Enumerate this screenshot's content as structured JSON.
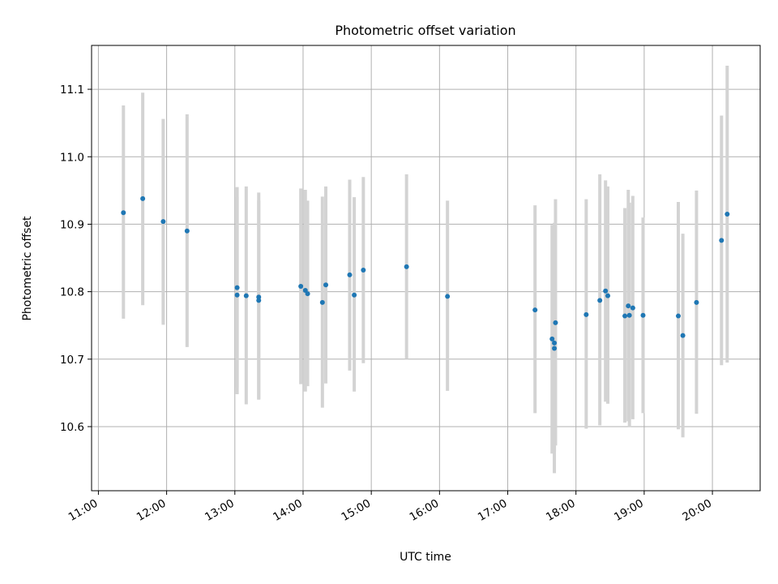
{
  "chart_data": {
    "type": "scatter",
    "title": "Photometric offset variation",
    "xlabel": "UTC time",
    "ylabel": "Photometric offset",
    "xlim": [
      "10:54",
      "20:42"
    ],
    "ylim": [
      10.505,
      11.165
    ],
    "grid": true,
    "x_ticks": [
      "11:00",
      "12:00",
      "13:00",
      "14:00",
      "15:00",
      "16:00",
      "17:00",
      "18:00",
      "19:00",
      "20:00"
    ],
    "y_ticks": [
      10.6,
      10.7,
      10.8,
      10.9,
      11.0,
      11.1
    ],
    "y_tick_labels": [
      "10.6",
      "10.7",
      "10.8",
      "10.9",
      "11.0",
      "11.1"
    ],
    "colors": {
      "points": "#1f77b4",
      "errorbars": "#d3d3d3"
    },
    "points": [
      {
        "x": "11:22",
        "y": 10.917,
        "ylow": 10.76,
        "yhigh": 11.076
      },
      {
        "x": "11:39",
        "y": 10.938,
        "ylow": 10.78,
        "yhigh": 11.095
      },
      {
        "x": "11:57",
        "y": 10.904,
        "ylow": 10.751,
        "yhigh": 11.056
      },
      {
        "x": "12:18",
        "y": 10.89,
        "ylow": 10.718,
        "yhigh": 11.063
      },
      {
        "x": "13:02",
        "y": 10.806,
        "ylow": 10.658,
        "yhigh": 10.955
      },
      {
        "x": "13:02",
        "y": 10.795,
        "ylow": 10.648,
        "yhigh": 10.94
      },
      {
        "x": "13:10",
        "y": 10.794,
        "ylow": 10.633,
        "yhigh": 10.956
      },
      {
        "x": "13:21",
        "y": 10.792,
        "ylow": 10.641,
        "yhigh": 10.947
      },
      {
        "x": "13:21",
        "y": 10.787,
        "ylow": 10.64,
        "yhigh": 10.935
      },
      {
        "x": "13:58",
        "y": 10.808,
        "ylow": 10.663,
        "yhigh": 10.953
      },
      {
        "x": "14:02",
        "y": 10.802,
        "ylow": 10.652,
        "yhigh": 10.951
      },
      {
        "x": "14:04",
        "y": 10.797,
        "ylow": 10.66,
        "yhigh": 10.935
      },
      {
        "x": "14:17",
        "y": 10.784,
        "ylow": 10.628,
        "yhigh": 10.941
      },
      {
        "x": "14:20",
        "y": 10.81,
        "ylow": 10.664,
        "yhigh": 10.956
      },
      {
        "x": "14:41",
        "y": 10.825,
        "ylow": 10.683,
        "yhigh": 10.966
      },
      {
        "x": "14:45",
        "y": 10.795,
        "ylow": 10.652,
        "yhigh": 10.94
      },
      {
        "x": "14:53",
        "y": 10.832,
        "ylow": 10.694,
        "yhigh": 10.97
      },
      {
        "x": "15:31",
        "y": 10.837,
        "ylow": 10.7,
        "yhigh": 10.974
      },
      {
        "x": "16:07",
        "y": 10.793,
        "ylow": 10.653,
        "yhigh": 10.935
      },
      {
        "x": "17:24",
        "y": 10.773,
        "ylow": 10.62,
        "yhigh": 10.928
      },
      {
        "x": "17:39",
        "y": 10.73,
        "ylow": 10.56,
        "yhigh": 10.899
      },
      {
        "x": "17:41",
        "y": 10.724,
        "ylow": 10.563,
        "yhigh": 10.886
      },
      {
        "x": "17:41",
        "y": 10.716,
        "ylow": 10.531,
        "yhigh": 10.902
      },
      {
        "x": "17:42",
        "y": 10.754,
        "ylow": 10.572,
        "yhigh": 10.937
      },
      {
        "x": "18:09",
        "y": 10.766,
        "ylow": 10.597,
        "yhigh": 10.937
      },
      {
        "x": "18:21",
        "y": 10.787,
        "ylow": 10.602,
        "yhigh": 10.974
      },
      {
        "x": "18:26",
        "y": 10.801,
        "ylow": 10.637,
        "yhigh": 10.965
      },
      {
        "x": "18:28",
        "y": 10.794,
        "ylow": 10.634,
        "yhigh": 10.956
      },
      {
        "x": "18:43",
        "y": 10.764,
        "ylow": 10.606,
        "yhigh": 10.924
      },
      {
        "x": "18:46",
        "y": 10.779,
        "ylow": 10.608,
        "yhigh": 10.951
      },
      {
        "x": "18:47",
        "y": 10.765,
        "ylow": 10.599,
        "yhigh": 10.932
      },
      {
        "x": "18:50",
        "y": 10.776,
        "ylow": 10.611,
        "yhigh": 10.942
      },
      {
        "x": "18:59",
        "y": 10.765,
        "ylow": 10.62,
        "yhigh": 10.91
      },
      {
        "x": "19:30",
        "y": 10.764,
        "ylow": 10.596,
        "yhigh": 10.933
      },
      {
        "x": "19:34",
        "y": 10.735,
        "ylow": 10.584,
        "yhigh": 10.886
      },
      {
        "x": "19:46",
        "y": 10.784,
        "ylow": 10.619,
        "yhigh": 10.95
      },
      {
        "x": "20:08",
        "y": 10.876,
        "ylow": 10.691,
        "yhigh": 11.061
      },
      {
        "x": "20:13",
        "y": 10.915,
        "ylow": 10.695,
        "yhigh": 11.135
      }
    ]
  }
}
